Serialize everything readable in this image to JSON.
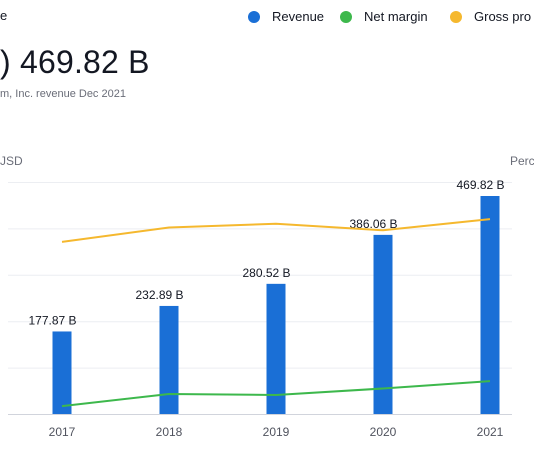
{
  "header": {
    "title": "e",
    "big_value": "469.82 B",
    "big_value_prefix": ")",
    "subtitle": "m, Inc. revenue Dec 2021"
  },
  "legend": {
    "items": [
      {
        "label": "Revenue",
        "color": "#1a6fd6"
      },
      {
        "label": "Net margin",
        "color": "#3db84c"
      },
      {
        "label": "Gross pro",
        "color": "#f5b82e"
      }
    ]
  },
  "axes": {
    "left_unit": "JSD",
    "right_unit": "Perc"
  },
  "chart_data": {
    "type": "bar",
    "categories": [
      "2017",
      "2018",
      "2019",
      "2020",
      "2021"
    ],
    "ylim": [
      0,
      500
    ],
    "grid": true,
    "series": [
      {
        "name": "Revenue",
        "kind": "bar",
        "color": "#1a6fd6",
        "values": [
          177.87,
          232.89,
          280.52,
          386.06,
          469.82
        ],
        "labels": [
          "177.87 B",
          "232.89 B",
          "280.52 B",
          "386.06 B",
          "469.82 B"
        ]
      },
      {
        "name": "Net margin",
        "kind": "line",
        "axis": "right",
        "color": "#3db84c",
        "values": [
          1.7,
          4.3,
          4.1,
          5.5,
          7.1
        ]
      },
      {
        "name": "Gross pro",
        "kind": "line",
        "axis": "right",
        "color": "#f5b82e",
        "values": [
          37.1,
          40.2,
          41.0,
          39.6,
          42.0
        ]
      }
    ],
    "right_ylim": [
      0,
      50
    ]
  }
}
